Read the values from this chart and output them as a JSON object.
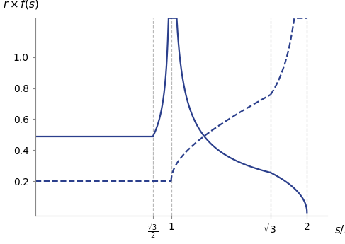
{
  "xlim": [
    0,
    2.15
  ],
  "ylim": [
    -0.02,
    1.25
  ],
  "vlines": [
    0.8660254,
    1.0,
    1.7320508,
    2.0
  ],
  "xticks": [
    0.8660254,
    1.0,
    1.7320508,
    2.0
  ],
  "xtick_labels": [
    "$\\frac{\\sqrt{3}}{2}$",
    "1",
    "$\\sqrt{3}$",
    "2"
  ],
  "yticks": [
    0.2,
    0.4,
    0.6,
    0.8,
    1.0
  ],
  "ylabel": "$r \\times f(s)$",
  "xlabel": "$s/r$",
  "line_color": "#2B3F8C",
  "solid_flat_value": 0.49,
  "dashed_flat_value": 0.2,
  "background_color": "#ffffff",
  "vline_color": "#a0a0a0",
  "spine_color": "#888888"
}
